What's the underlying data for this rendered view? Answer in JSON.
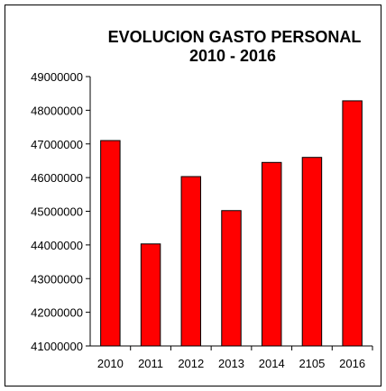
{
  "chart_data": {
    "type": "bar",
    "title_line1": "EVOLUCION GASTO PERSONAL",
    "title_line2": "2010 - 2016",
    "xlabel": "",
    "ylabel": "",
    "categories": [
      "2010",
      "2011",
      "2012",
      "2013",
      "2014",
      "2105",
      "2016"
    ],
    "values": [
      47100000,
      44030000,
      46030000,
      45020000,
      46450000,
      46600000,
      48280000
    ],
    "ylim": [
      41000000,
      49000000
    ],
    "yticks": [
      41000000,
      42000000,
      43000000,
      44000000,
      45000000,
      46000000,
      47000000,
      48000000,
      49000000
    ],
    "ytick_labels": [
      "41000000",
      "42000000",
      "43000000",
      "44000000",
      "45000000",
      "46000000",
      "47000000",
      "48000000",
      "49000000"
    ],
    "bar_color": "#ff0000",
    "grid": false,
    "legend": "none"
  }
}
